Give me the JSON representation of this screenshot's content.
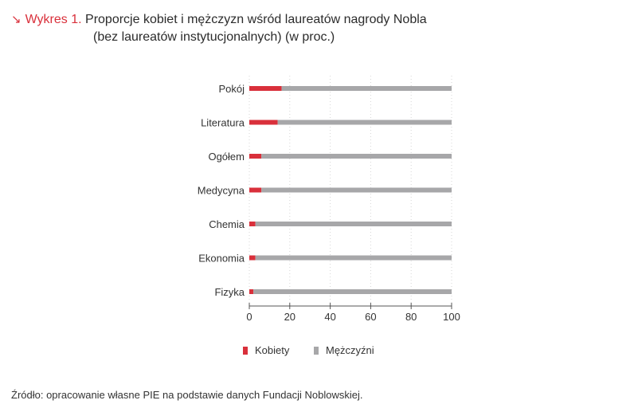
{
  "figure_label": "Wykres 1.",
  "title_line1": "Proporcje kobiet i mężczyzn wśród laureatów nagrody Nobla",
  "title_line2": "(bez laureatów instytucjonalnych) (w proc.)",
  "source": "Źródło: opracowanie własne PIE na podstawie danych Fundacji Noblowskiej.",
  "colors": {
    "women": "#d9303b",
    "men": "#a7a7a9",
    "accent": "#d9303b"
  },
  "chart_data": {
    "type": "bar",
    "orientation": "horizontal",
    "stacked": true,
    "categories": [
      "Pokój",
      "Literatura",
      "Ogółem",
      "Medycyna",
      "Chemia",
      "Ekonomia",
      "Fizyka"
    ],
    "series": [
      {
        "name": "Kobiety",
        "values": [
          16,
          14,
          6,
          6,
          3,
          3,
          2
        ]
      },
      {
        "name": "Mężczyźni",
        "values": [
          84,
          86,
          94,
          94,
          97,
          97,
          98
        ]
      }
    ],
    "xticks": [
      "0",
      "20",
      "40",
      "60",
      "80",
      "100"
    ],
    "xlim": [
      0,
      100
    ],
    "grid": true,
    "legend_position": "bottom"
  }
}
